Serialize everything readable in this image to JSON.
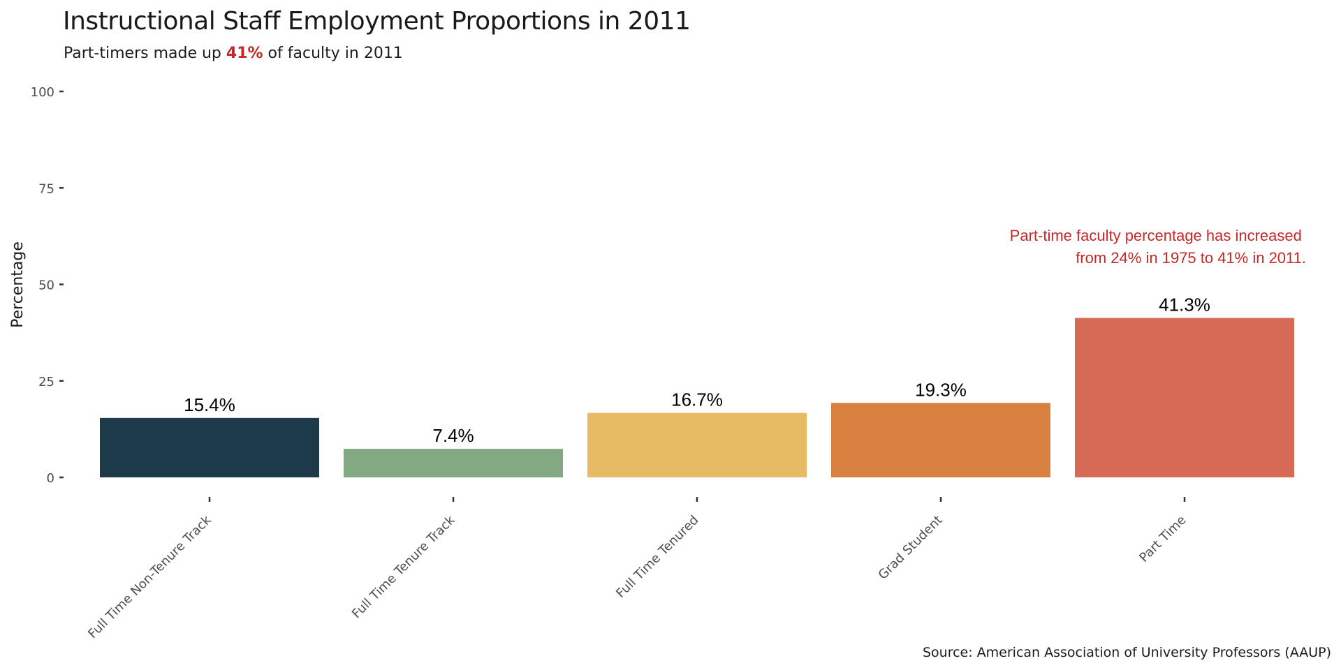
{
  "colors": {
    "accent_red": "#C62828",
    "bar_colors": [
      "#1D3A4B",
      "#83A982",
      "#E7BB63",
      "#D98141",
      "#D56A55"
    ]
  },
  "chart_data": {
    "type": "bar",
    "title": "Instructional Staff Employment Proportions in 2011",
    "subtitle_prefix": "Part-timers made up ",
    "subtitle_highlight": "41%",
    "subtitle_suffix": " of faculty in 2011",
    "xlabel": "",
    "ylabel": "Percentage",
    "ylim": [
      0,
      100
    ],
    "yticks": [
      "0",
      "25",
      "50",
      "75",
      "100"
    ],
    "categories": [
      "Full Time Non-Tenure Track",
      "Full Time Tenure Track",
      "Full Time Tenured",
      "Grad Student",
      "Part Time"
    ],
    "values": [
      15.4,
      7.4,
      16.7,
      19.3,
      41.3
    ],
    "value_labels": [
      "15.4%",
      "7.4%",
      "16.7%",
      "19.3%",
      "41.3%"
    ],
    "annotation_line1": "Part-time faculty percentage has increased",
    "annotation_line2": "from 24% in 1975 to 41% in 2011.",
    "caption": "Source: American Association of University Professors (AAUP)",
    "grid": false,
    "legend": "none"
  }
}
